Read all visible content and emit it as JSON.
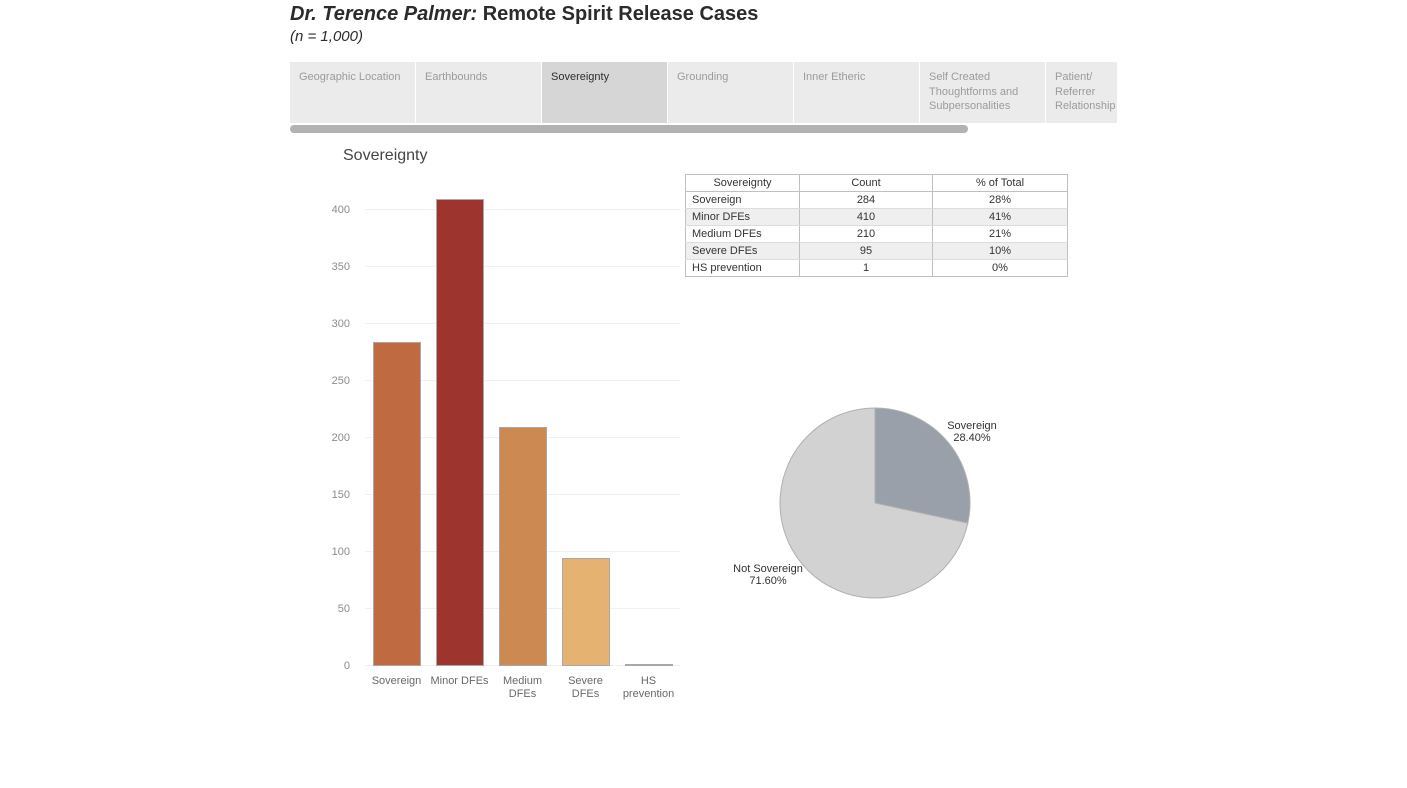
{
  "header": {
    "title_prefix": "Dr. Terence Palmer:",
    "title_main": " Remote Spirit Release Cases",
    "subtitle": "(n = 1,000)"
  },
  "tabs": {
    "items": [
      {
        "label": "Geographic Location",
        "selected": false
      },
      {
        "label": "Earthbounds",
        "selected": false
      },
      {
        "label": "Sovereignty",
        "selected": true
      },
      {
        "label": "Grounding",
        "selected": false
      },
      {
        "label": "Inner Etheric",
        "selected": false
      },
      {
        "label": "Self Created Thoughtforms and Subpersonalities",
        "selected": false
      },
      {
        "label": "Patient/ Referrer Relationship",
        "selected": false
      }
    ]
  },
  "section_title": "Sovereignty",
  "table": {
    "headers": [
      "Sovereignty",
      "Count",
      "% of Total"
    ],
    "rows": [
      {
        "label": "Sovereign",
        "count": "284",
        "pct": "28%"
      },
      {
        "label": "Minor DFEs",
        "count": "410",
        "pct": "41%"
      },
      {
        "label": "Medium DFEs",
        "count": "210",
        "pct": "21%"
      },
      {
        "label": "Severe DFEs",
        "count": "95",
        "pct": "10%"
      },
      {
        "label": "HS prevention",
        "count": "1",
        "pct": "0%"
      }
    ]
  },
  "chart_data": [
    {
      "type": "bar",
      "title": "Sovereignty",
      "categories": [
        "Sovereign",
        "Minor DFEs",
        "Medium DFEs",
        "Severe DFEs",
        "HS prevention"
      ],
      "values": [
        284,
        410,
        210,
        95,
        1
      ],
      "label_lines": [
        [
          "Sovereign"
        ],
        [
          "Minor DFEs"
        ],
        [
          "Medium",
          "DFEs"
        ],
        [
          "Severe DFEs"
        ],
        [
          "HS",
          "prevention"
        ]
      ],
      "bar_colors": [
        "#bf6a40",
        "#9e342e",
        "#cc8a52",
        "#e6b272",
        "#f2ddb0"
      ],
      "xlabel": "",
      "ylabel": "",
      "ylim": [
        0,
        421
      ],
      "yticks": [
        0,
        50,
        100,
        150,
        200,
        250,
        300,
        350,
        400
      ],
      "grid": true,
      "legend": "none"
    },
    {
      "type": "pie",
      "slices": [
        {
          "label": "Sovereign",
          "pct": 28.4,
          "display_pct": "28.40%",
          "color": "#99a0a9"
        },
        {
          "label": "Not Sovereign",
          "pct": 71.6,
          "display_pct": "71.60%",
          "color": "#d2d2d2"
        }
      ],
      "stroke_color": "#b0b0b0",
      "start_angle_deg": -90,
      "direction": "clockwise"
    }
  ],
  "colors": {
    "tab_bg": "#ebebeb",
    "tab_selected_bg": "#d6d6d6",
    "tab_text": "#9b9b9b",
    "tab_selected_text": "#2e2e2e",
    "scrollbar": "#b2b2b2",
    "gridline": "#f0f0f0",
    "bar_border": "#a8a8a8",
    "table_border": "#c0c0c0",
    "table_alt_row": "#efefef"
  }
}
